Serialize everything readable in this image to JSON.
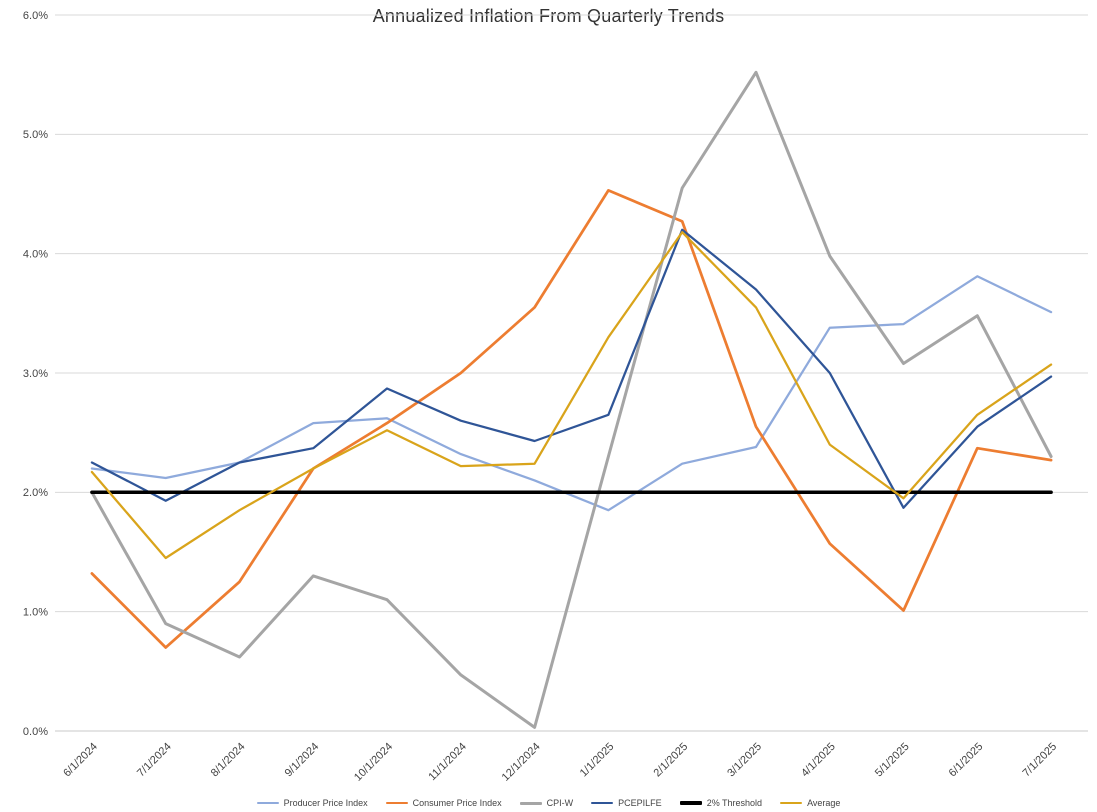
{
  "chart_data": {
    "type": "line",
    "title": "Annualized Inflation From Quarterly Trends",
    "categories": [
      "6/1/2024",
      "7/1/2024",
      "8/1/2024",
      "9/1/2024",
      "10/1/2024",
      "11/1/2024",
      "12/1/2024",
      "1/1/2025",
      "2/1/2025",
      "3/1/2025",
      "4/1/2025",
      "5/1/2025",
      "6/1/2025",
      "7/1/2025"
    ],
    "series": [
      {
        "name": "Producer Price Index",
        "color": "#8FAADC",
        "width": 2.25,
        "values": [
          2.2,
          2.12,
          2.25,
          2.58,
          2.62,
          2.32,
          2.1,
          1.85,
          2.24,
          2.38,
          3.38,
          3.41,
          3.81,
          3.51
        ]
      },
      {
        "name": "Consumer Price Index",
        "color": "#ED7D31",
        "width": 2.75,
        "values": [
          1.32,
          0.7,
          1.25,
          2.2,
          2.58,
          3.0,
          3.55,
          4.53,
          4.27,
          2.55,
          1.57,
          1.01,
          2.37,
          2.27
        ]
      },
      {
        "name": "CPI-W",
        "color": "#A5A5A5",
        "width": 3,
        "values": [
          2.0,
          0.9,
          0.62,
          1.3,
          1.1,
          0.47,
          0.03,
          2.3,
          4.55,
          5.52,
          3.98,
          3.08,
          3.48,
          2.3
        ]
      },
      {
        "name": "PCEPILFE",
        "color": "#2F5597",
        "width": 2.25,
        "values": [
          2.25,
          1.93,
          2.25,
          2.37,
          2.87,
          2.6,
          2.43,
          2.65,
          4.2,
          3.7,
          3.0,
          1.87,
          2.55,
          2.97
        ]
      },
      {
        "name": "2% Threshold",
        "color": "#000000",
        "width": 3.5,
        "values": [
          2.0,
          2.0,
          2.0,
          2.0,
          2.0,
          2.0,
          2.0,
          2.0,
          2.0,
          2.0,
          2.0,
          2.0,
          2.0,
          2.0
        ]
      },
      {
        "name": "Average",
        "color": "#D9A41B",
        "width": 2.25,
        "values": [
          2.17,
          1.45,
          1.85,
          2.2,
          2.52,
          2.22,
          2.24,
          3.3,
          4.18,
          3.55,
          2.4,
          1.95,
          2.65,
          3.07
        ]
      }
    ],
    "xlabel": "",
    "ylabel": "",
    "ylim": [
      0,
      6
    ],
    "y_ticks": [
      "0.0%",
      "1.0%",
      "2.0%",
      "3.0%",
      "4.0%",
      "5.0%",
      "6.0%"
    ],
    "grid": true,
    "legend_position": "bottom",
    "colors": {
      "gridline": "#D9D9D9",
      "axis_line": "#C9C9C9",
      "tick_text": "#444444",
      "title_text": "#333333"
    }
  }
}
